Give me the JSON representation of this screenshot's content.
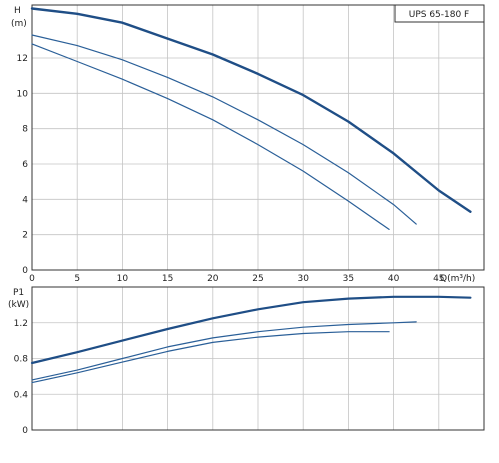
{
  "chart_data": [
    {
      "type": "line",
      "title": "UPS 65-180 F",
      "ylabel_top": "H",
      "ylabel_unit": "(m)",
      "xlabel": "Q(m³/h)",
      "xlim": [
        0,
        50
      ],
      "ylim": [
        0,
        15
      ],
      "x_ticks": [
        0,
        5,
        10,
        15,
        20,
        25,
        30,
        35,
        40,
        45
      ],
      "y_ticks": [
        0,
        2,
        4,
        6,
        8,
        10,
        12
      ],
      "grid": true,
      "series": [
        {
          "x": [
            0,
            5,
            10,
            15,
            20,
            25,
            30,
            35,
            40,
            45,
            48.5
          ],
          "y": [
            14.8,
            14.5,
            14.0,
            13.1,
            12.2,
            11.1,
            9.9,
            8.4,
            6.6,
            4.5,
            3.3
          ],
          "color": "#1f4e86",
          "width": 2.4
        },
        {
          "x": [
            0,
            5,
            10,
            15,
            20,
            25,
            30,
            35,
            40,
            42.5
          ],
          "y": [
            13.3,
            12.7,
            11.9,
            10.9,
            9.8,
            8.5,
            7.1,
            5.5,
            3.7,
            2.6
          ],
          "color": "#2a5f98",
          "width": 1.2
        },
        {
          "x": [
            0,
            5,
            10,
            15,
            20,
            25,
            30,
            35,
            39.5
          ],
          "y": [
            12.8,
            11.8,
            10.8,
            9.7,
            8.5,
            7.1,
            5.6,
            3.9,
            2.3
          ],
          "color": "#2a5f98",
          "width": 1.2
        }
      ]
    },
    {
      "type": "line",
      "ylabel_top": "P1",
      "ylabel_unit": "(kW)",
      "xlim": [
        0,
        50
      ],
      "ylim": [
        0,
        1.6
      ],
      "y_ticks": [
        0,
        0.4,
        0.8,
        1.2
      ],
      "y_tick_labels": [
        "0",
        "0.4",
        "0.8",
        "1.2"
      ],
      "grid": true,
      "series": [
        {
          "x": [
            0,
            5,
            10,
            15,
            20,
            25,
            30,
            35,
            40,
            45,
            48.5
          ],
          "y": [
            0.75,
            0.87,
            1.0,
            1.13,
            1.25,
            1.35,
            1.43,
            1.47,
            1.49,
            1.49,
            1.48
          ],
          "color": "#1f4e86",
          "width": 2.2
        },
        {
          "x": [
            0,
            5,
            10,
            15,
            20,
            25,
            30,
            35,
            40,
            42.5
          ],
          "y": [
            0.56,
            0.67,
            0.8,
            0.93,
            1.03,
            1.1,
            1.15,
            1.18,
            1.2,
            1.21
          ],
          "color": "#2a5f98",
          "width": 1.2
        },
        {
          "x": [
            0,
            5,
            10,
            15,
            20,
            25,
            30,
            35,
            39.5
          ],
          "y": [
            0.53,
            0.64,
            0.76,
            0.88,
            0.98,
            1.04,
            1.08,
            1.1,
            1.1
          ],
          "color": "#2a5f98",
          "width": 1.2
        }
      ]
    }
  ],
  "colors": {
    "grid": "#c4c4c4",
    "frame": "#333333",
    "curve": "#1f4e86"
  }
}
